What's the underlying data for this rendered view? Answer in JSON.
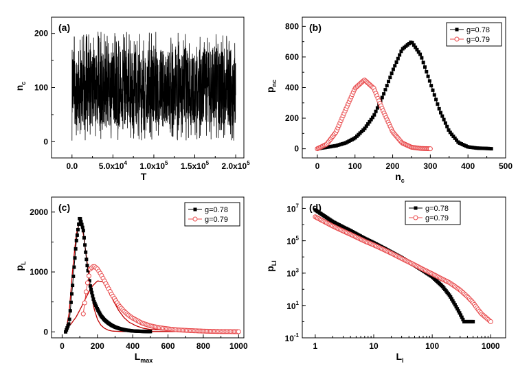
{
  "chart_data": [
    {
      "type": "line",
      "panel": "(a)",
      "xlabel": "T",
      "ylabel": "n",
      "ylabel_sub": "c",
      "xlim": [
        -25000,
        210000
      ],
      "ylim": [
        -30,
        230
      ],
      "xticks": [
        0,
        50000,
        100000,
        150000,
        200000
      ],
      "xtick_labels": [
        {
          "m": "0.0",
          "e": ""
        },
        {
          "m": "5.0x10",
          "e": "4"
        },
        {
          "m": "1.0x10",
          "e": "5"
        },
        {
          "m": "1.5x10",
          "e": "5"
        },
        {
          "m": "2.0x10",
          "e": "5"
        }
      ],
      "yticks": [
        0,
        100,
        200
      ],
      "ytick_labels": [
        "0",
        "100",
        "200"
      ],
      "series": [
        {
          "color": "#000000",
          "x_range": [
            0,
            200000
          ],
          "mean": 100,
          "band_low": 30,
          "band_high": 170,
          "min": 2,
          "max": 203
        }
      ]
    },
    {
      "type": "line",
      "panel": "(b)",
      "xlabel": "n",
      "xlabel_sub": "c",
      "ylabel": "p",
      "ylabel_sub": "nc",
      "xlim": [
        -40,
        500
      ],
      "ylim": [
        -60,
        860
      ],
      "xticks": [
        0,
        100,
        200,
        300,
        400,
        500
      ],
      "xtick_labels": [
        "0",
        "100",
        "200",
        "300",
        "400",
        "500"
      ],
      "yticks": [
        0,
        200,
        400,
        600,
        800
      ],
      "ytick_labels": [
        "0",
        "200",
        "400",
        "600",
        "800"
      ],
      "legend": "top-right",
      "series": [
        {
          "name": "g=0.78",
          "color": "#000000",
          "marker": "square",
          "x": [
            0,
            25,
            50,
            75,
            100,
            125,
            150,
            175,
            200,
            225,
            250,
            275,
            300,
            325,
            350,
            375,
            400,
            425,
            450,
            462
          ],
          "y": [
            0,
            10,
            20,
            38,
            70,
            130,
            215,
            350,
            510,
            650,
            700,
            610,
            430,
            250,
            115,
            40,
            12,
            4,
            2,
            0
          ]
        },
        {
          "name": "g=0.79",
          "color": "#e8484a",
          "marker": "circle",
          "x": [
            0,
            25,
            50,
            75,
            100,
            125,
            150,
            175,
            200,
            225,
            250,
            275,
            300
          ],
          "y": [
            0,
            30,
            110,
            255,
            395,
            450,
            395,
            245,
            110,
            38,
            10,
            2,
            0
          ]
        }
      ]
    },
    {
      "type": "line",
      "panel": "(c)",
      "xlabel": "L",
      "xlabel_sub": "max",
      "ylabel": "p",
      "ylabel_sub": "L",
      "xlim": [
        -60,
        1030
      ],
      "ylim": [
        -100,
        2250
      ],
      "xticks": [
        0,
        200,
        400,
        600,
        800,
        1000
      ],
      "xtick_labels": [
        "0",
        "200",
        "400",
        "600",
        "800",
        "1000"
      ],
      "yticks": [
        0,
        1000,
        2000
      ],
      "ytick_labels": [
        "0",
        "1000",
        "2000"
      ],
      "legend": "top-right",
      "series": [
        {
          "name": "g=0.78",
          "color": "#000000",
          "marker": "square",
          "x": [
            20,
            40,
            60,
            80,
            100,
            120,
            140,
            160,
            180,
            200,
            220,
            240,
            260,
            280,
            300,
            330,
            360,
            400,
            450,
            500
          ],
          "y": [
            0,
            150,
            800,
            1500,
            1920,
            1700,
            1150,
            760,
            510,
            380,
            270,
            200,
            150,
            110,
            80,
            50,
            30,
            15,
            8,
            5
          ]
        },
        {
          "name": "g=0.79",
          "color": "#e8484a",
          "marker": "circle",
          "x": [
            120,
            140,
            160,
            180,
            200,
            220,
            240,
            260,
            280,
            300,
            320,
            340,
            360,
            380,
            400,
            450,
            500,
            550,
            600,
            650,
            700,
            750,
            800,
            850,
            900,
            1000
          ],
          "y": [
            300,
            760,
            1050,
            1100,
            1050,
            960,
            850,
            740,
            630,
            540,
            450,
            380,
            320,
            270,
            230,
            150,
            100,
            70,
            50,
            35,
            25,
            18,
            12,
            8,
            5,
            3
          ]
        }
      ],
      "fits": [
        {
          "color": "#c00000",
          "x": [
            20,
            40,
            60,
            80,
            100,
            120,
            140,
            160,
            180,
            200,
            220,
            240,
            260,
            280,
            300,
            340,
            400,
            500,
            700,
            1000
          ],
          "y": [
            0,
            320,
            1050,
            1620,
            1860,
            1650,
            1200,
            730,
            400,
            210,
            110,
            60,
            30,
            15,
            10,
            6,
            5,
            5,
            5,
            5
          ]
        },
        {
          "color": "#c00000",
          "x": [
            20,
            50,
            80,
            110,
            140,
            170,
            200,
            230,
            260,
            290,
            320,
            350,
            380,
            420,
            460,
            500,
            600,
            700,
            800,
            1000
          ],
          "y": [
            60,
            130,
            250,
            420,
            600,
            760,
            850,
            840,
            700,
            520,
            360,
            240,
            160,
            100,
            60,
            40,
            25,
            15,
            10,
            5
          ]
        }
      ]
    },
    {
      "type": "line",
      "panel": "(d)",
      "xlabel": "L",
      "xlabel_sub": "l",
      "ylabel": "p",
      "ylabel_sub": "Ll",
      "xscale": "log",
      "yscale": "log",
      "xlim": [
        0.6,
        1800
      ],
      "ylim": [
        0.1,
        50000000
      ],
      "xticks": [
        1,
        10,
        100,
        1000
      ],
      "xtick_labels": [
        "1",
        "10",
        "100",
        "1000"
      ],
      "yticks": [
        0.1,
        10,
        1000,
        100000,
        10000000
      ],
      "ytick_labels": [
        {
          "m": "10",
          "e": "-1"
        },
        {
          "m": "10",
          "e": "1"
        },
        {
          "m": "10",
          "e": "3"
        },
        {
          "m": "10",
          "e": "5"
        },
        {
          "m": "10",
          "e": "7"
        }
      ],
      "legend": "top-center",
      "series": [
        {
          "name": "g=0.78",
          "color": "#000000",
          "marker": "square",
          "x": [
            1,
            2,
            3,
            4,
            5,
            7,
            10,
            15,
            20,
            30,
            50,
            70,
            100,
            150,
            200,
            250,
            300,
            350,
            400,
            500
          ],
          "y": [
            8000000,
            1500000,
            700000,
            420000,
            270000,
            140000,
            75000,
            35000,
            20000,
            9000,
            3000,
            1400,
            600,
            150,
            40,
            10,
            3,
            1,
            1,
            1
          ]
        },
        {
          "name": "g=0.79",
          "color": "#e8484a",
          "marker": "circle",
          "x": [
            1,
            2,
            3,
            4,
            5,
            7,
            10,
            15,
            20,
            30,
            50,
            70,
            100,
            150,
            200,
            300,
            400,
            500,
            600,
            700,
            800,
            1000
          ],
          "y": [
            3000000,
            800000,
            400000,
            250000,
            170000,
            95000,
            55000,
            28000,
            17000,
            8000,
            3200,
            1700,
            900,
            420,
            250,
            90,
            35,
            15,
            6,
            3,
            2,
            1
          ]
        }
      ]
    }
  ]
}
